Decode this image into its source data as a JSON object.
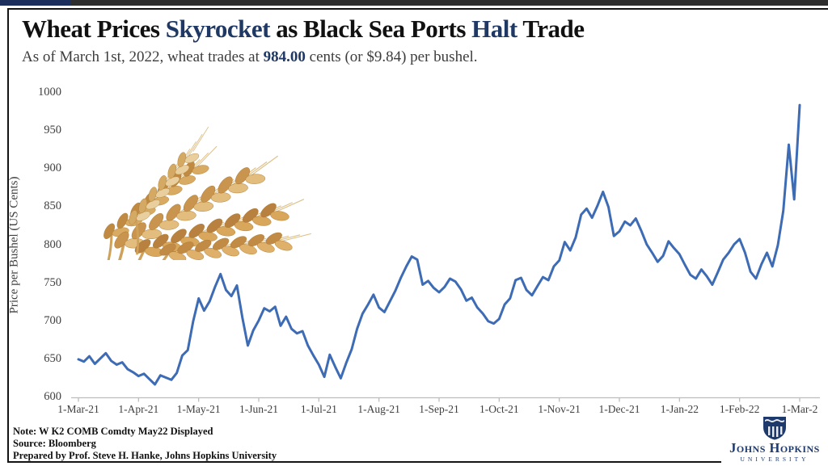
{
  "header": {
    "title_parts": [
      {
        "text": "Wheat Prices "
      },
      {
        "text": "Skyrocket"
      },
      {
        "text": " as Black Sea Ports "
      },
      {
        "text": "Halt"
      },
      {
        "text": " Trade"
      }
    ],
    "subtitle_parts": [
      {
        "text": "As of March 1st, 2022, wheat trades at "
      },
      {
        "text": "984.00"
      },
      {
        "text": " cents (or $9.84) per bushel."
      }
    ]
  },
  "chart_data": {
    "type": "line",
    "title": "Wheat price, 1-Mar-21 to 1-Mar-22",
    "ylabel": "Price per Bushel (US Cents)",
    "xlabel": "",
    "ylim": [
      600,
      1000
    ],
    "y_ticks": [
      1000,
      950,
      900,
      850,
      800,
      750,
      700,
      650,
      600
    ],
    "x_ticks": [
      "1-Mar-21",
      "1-Apr-21",
      "1-May-21",
      "1-Jun-21",
      "1-Jul-21",
      "1-Aug-21",
      "1-Sep-21",
      "1-Oct-21",
      "1-Nov-21",
      "1-Dec-21",
      "1-Jan-22",
      "1-Feb-22",
      "1-Mar-2"
    ],
    "grid": false,
    "legend_position": "none",
    "series": [
      {
        "name": "W K2 COMB Comdty May22",
        "final_value": 984.0,
        "values": [
          650,
          647,
          654,
          644,
          651,
          658,
          648,
          643,
          646,
          637,
          633,
          628,
          631,
          624,
          617,
          629,
          626,
          623,
          632,
          655,
          662,
          700,
          730,
          714,
          726,
          745,
          762,
          741,
          733,
          747,
          705,
          668,
          688,
          701,
          717,
          713,
          719,
          694,
          706,
          690,
          684,
          687,
          668,
          655,
          643,
          627,
          656,
          640,
          625,
          645,
          663,
          690,
          710,
          722,
          735,
          718,
          712,
          726,
          740,
          757,
          772,
          785,
          781,
          748,
          753,
          744,
          738,
          745,
          756,
          752,
          742,
          727,
          731,
          718,
          710,
          700,
          697,
          703,
          722,
          730,
          754,
          757,
          741,
          734,
          746,
          758,
          754,
          772,
          780,
          804,
          793,
          810,
          840,
          848,
          836,
          852,
          870,
          850,
          812,
          818,
          831,
          826,
          835,
          819,
          801,
          790,
          778,
          786,
          805,
          796,
          788,
          774,
          761,
          756,
          768,
          759,
          748,
          764,
          781,
          790,
          801,
          808,
          790,
          765,
          756,
          775,
          790,
          772,
          800,
          845,
          932,
          860,
          984
        ]
      }
    ],
    "line_color": "#3d6bb4",
    "axis_color": "#bdbdbd"
  },
  "footnotes": {
    "note": "Note: W K2 COMB Comdty May22 Displayed",
    "source": "Source: Bloomberg",
    "prepared": "Prepared by Prof. Steve H. Hanke, Johns Hopkins University"
  },
  "logo": {
    "name": "Johns Hopkins",
    "subname": "UNIVERSITY"
  },
  "colors": {
    "accent_navy": "#1f3864",
    "title_black": "#111111",
    "jhu_navy": "#1e3a6d",
    "progress_watched": "#1c2f5c",
    "progress_track": "#2e2e2e"
  }
}
